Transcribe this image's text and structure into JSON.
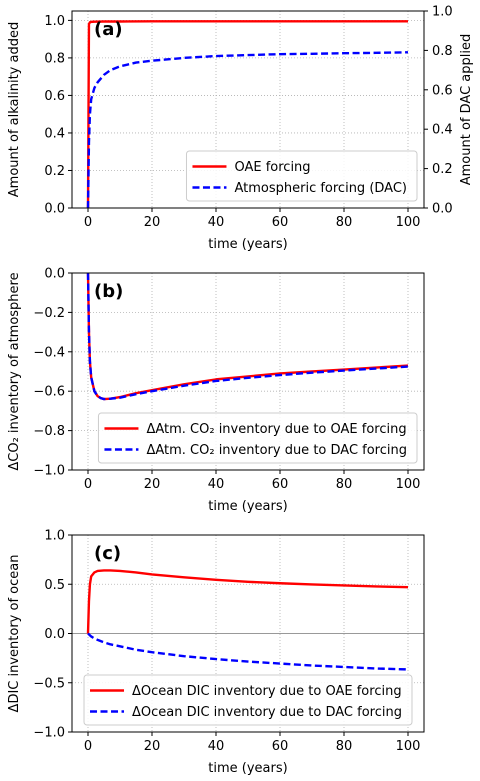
{
  "colors": {
    "oae": "#ff0000",
    "dac": "#0000ff",
    "grid": "#b0b0b0",
    "zero_line": "#999999"
  },
  "chart_data": [
    {
      "type": "line",
      "panel_label": "(a)",
      "xlabel": "time (years)",
      "ylabel": "Amount of alkalinity added",
      "ylabel_right": "Amount of DAC applied",
      "xlim": [
        -5,
        105
      ],
      "ylim": [
        0,
        1.05
      ],
      "ylim_right": [
        0,
        1.0
      ],
      "xticks": [
        0,
        20,
        40,
        60,
        80,
        100
      ],
      "yticks": [
        0.0,
        0.2,
        0.4,
        0.6,
        0.8,
        1.0
      ],
      "yticks_right": [
        0.0,
        0.2,
        0.4,
        0.6,
        0.8,
        1.0
      ],
      "grid": true,
      "legend_position": "lower-right",
      "series": [
        {
          "name": "OAE forcing",
          "color": "#ff0000",
          "style": "solid",
          "x": [
            0,
            0.3,
            0.6,
            1,
            2,
            5,
            10,
            20,
            40,
            60,
            80,
            100
          ],
          "y": [
            0,
            0.98,
            0.99,
            0.992,
            0.993,
            0.994,
            0.994,
            0.995,
            0.995,
            0.995,
            0.995,
            0.995
          ]
        },
        {
          "name": "Atmospheric forcing (DAC)",
          "color": "#0000ff",
          "style": "dashed",
          "x": [
            0,
            0.3,
            0.6,
            1,
            2,
            3,
            5,
            7,
            10,
            15,
            20,
            30,
            40,
            50,
            60,
            70,
            80,
            90,
            100
          ],
          "y": [
            0,
            0.35,
            0.5,
            0.58,
            0.64,
            0.67,
            0.71,
            0.735,
            0.755,
            0.775,
            0.785,
            0.8,
            0.81,
            0.815,
            0.82,
            0.822,
            0.825,
            0.827,
            0.83
          ]
        }
      ]
    },
    {
      "type": "line",
      "panel_label": "(b)",
      "xlabel": "time (years)",
      "ylabel": "ΔCO₂ inventory of atmosphere",
      "xlim": [
        -5,
        105
      ],
      "ylim": [
        -1.0,
        0.0
      ],
      "xticks": [
        0,
        20,
        40,
        60,
        80,
        100
      ],
      "yticks": [
        0.0,
        -0.2,
        -0.4,
        -0.6,
        -0.8,
        -1.0
      ],
      "grid": true,
      "legend_position": "lower-right",
      "series": [
        {
          "name": "ΔAtm. CO₂ inventory due to OAE forcing",
          "color": "#ff0000",
          "style": "solid",
          "x": [
            0,
            0.3,
            0.6,
            1,
            2,
            3,
            4,
            5,
            7,
            10,
            15,
            20,
            30,
            40,
            50,
            60,
            70,
            80,
            90,
            100
          ],
          "y": [
            0,
            -0.3,
            -0.45,
            -0.53,
            -0.6,
            -0.625,
            -0.635,
            -0.64,
            -0.638,
            -0.63,
            -0.61,
            -0.595,
            -0.565,
            -0.54,
            -0.525,
            -0.51,
            -0.5,
            -0.49,
            -0.48,
            -0.47
          ]
        },
        {
          "name": "ΔAtm. CO₂ inventory due to DAC forcing",
          "color": "#0000ff",
          "style": "dashed",
          "x": [
            0,
            0.3,
            0.6,
            1,
            2,
            3,
            4,
            5,
            7,
            10,
            15,
            20,
            30,
            40,
            50,
            60,
            70,
            80,
            90,
            100
          ],
          "y": [
            0,
            -0.3,
            -0.45,
            -0.53,
            -0.6,
            -0.625,
            -0.635,
            -0.64,
            -0.638,
            -0.633,
            -0.615,
            -0.6,
            -0.572,
            -0.548,
            -0.532,
            -0.518,
            -0.506,
            -0.495,
            -0.485,
            -0.475
          ]
        }
      ]
    },
    {
      "type": "line",
      "panel_label": "(c)",
      "xlabel": "time (years)",
      "ylabel": "ΔDIC inventory of ocean",
      "xlim": [
        -5,
        105
      ],
      "ylim": [
        -1.0,
        1.0
      ],
      "xticks": [
        0,
        20,
        40,
        60,
        80,
        100
      ],
      "yticks": [
        1.0,
        0.5,
        0.0,
        -0.5,
        -1.0
      ],
      "grid": true,
      "zero_line": true,
      "legend_position": "lower-center",
      "series": [
        {
          "name": "ΔOcean DIC inventory due to OAE forcing",
          "color": "#ff0000",
          "style": "solid",
          "x": [
            0,
            0.3,
            0.6,
            1,
            2,
            3,
            5,
            7,
            10,
            15,
            20,
            30,
            40,
            50,
            60,
            70,
            80,
            90,
            100
          ],
          "y": [
            0,
            0.33,
            0.5,
            0.58,
            0.62,
            0.635,
            0.64,
            0.64,
            0.635,
            0.62,
            0.6,
            0.57,
            0.545,
            0.525,
            0.51,
            0.498,
            0.488,
            0.478,
            0.47
          ]
        },
        {
          "name": "ΔOcean DIC inventory due to DAC forcing",
          "color": "#0000ff",
          "style": "dashed",
          "x": [
            0,
            1,
            2,
            3,
            5,
            7,
            10,
            15,
            20,
            30,
            40,
            50,
            60,
            70,
            80,
            90,
            100
          ],
          "y": [
            0,
            -0.03,
            -0.05,
            -0.065,
            -0.09,
            -0.11,
            -0.13,
            -0.165,
            -0.19,
            -0.23,
            -0.26,
            -0.285,
            -0.305,
            -0.325,
            -0.34,
            -0.355,
            -0.365
          ]
        }
      ]
    }
  ]
}
